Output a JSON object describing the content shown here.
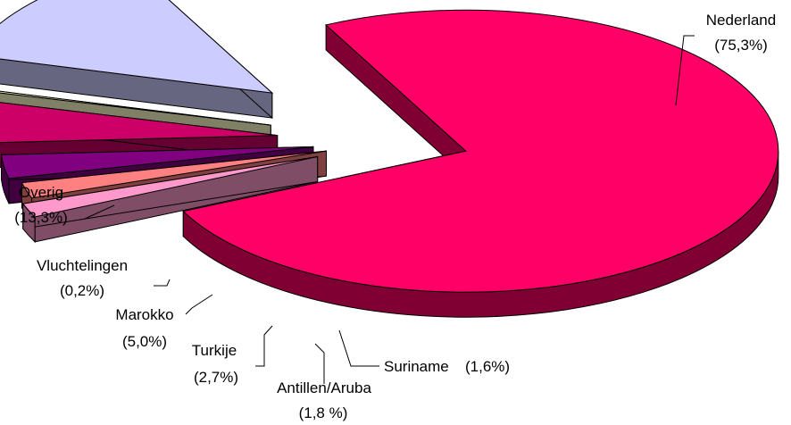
{
  "chart_data": {
    "type": "pie",
    "title": "",
    "style": "3d-exploded",
    "slices": [
      {
        "name": "Nederland",
        "value": 75.3,
        "value_label": "(75,3%)",
        "color": "#ff0066",
        "side_color": "#800033"
      },
      {
        "name": "Suriname",
        "value": 1.6,
        "value_label": "(1,6%)",
        "color": "#ff99cc",
        "side_color": "#804d66"
      },
      {
        "name": "Antillen/Aruba",
        "value": 1.8,
        "value_label": "(1,8 %)",
        "color": "#ff8080",
        "side_color": "#804040"
      },
      {
        "name": "Turkije",
        "value": 2.7,
        "value_label": "(2,7%)",
        "color": "#800080",
        "side_color": "#400040"
      },
      {
        "name": "Marokko",
        "value": 5.0,
        "value_label": "(5,0%)",
        "color": "#cc0066",
        "side_color": "#660033"
      },
      {
        "name": "Vluchtelingen",
        "value": 0.2,
        "value_label": "(0,2%)",
        "color": "#ffffcc",
        "side_color": "#808066"
      },
      {
        "name": "Overig",
        "value": 13.3,
        "value_label": "(13,3%)",
        "color": "#ccccff",
        "side_color": "#666680"
      }
    ]
  }
}
